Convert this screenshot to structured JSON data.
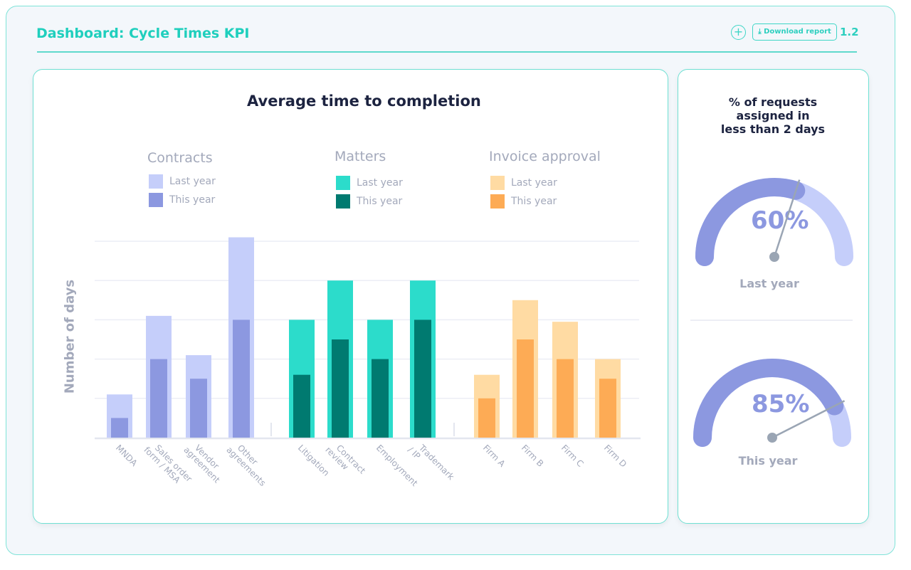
{
  "header": {
    "title": "Dashboard: Cycle Times KPI",
    "add_icon": "plus-circle-icon",
    "download_label": "Download report",
    "download_icon": "download-icon",
    "version": "1.2"
  },
  "colors": {
    "accent": "#2dcfbf",
    "contracts_last": "#c5cefa",
    "contracts_this": "#8c98e0",
    "matters_last": "#2cdccb",
    "matters_this": "#007a70",
    "invoice_last": "#ffdba3",
    "invoice_this": "#fdab55"
  },
  "chart_data": {
    "type": "bar",
    "title": "Average time to completion",
    "ylabel": "Number of days",
    "xlabel": "",
    "grid": true,
    "ylim": [
      0,
      5
    ],
    "groups": [
      {
        "name": "Contracts",
        "legend": [
          "Last year",
          "This year"
        ],
        "categories": [
          [
            "MNDA"
          ],
          [
            "Sales order",
            "form / MSA"
          ],
          [
            "Vendor",
            "agreement"
          ],
          [
            "Other",
            "agreements"
          ]
        ],
        "series": [
          {
            "name": "Last year",
            "values": [
              1.1,
              3.1,
              2.1,
              5.1
            ]
          },
          {
            "name": "This year",
            "values": [
              0.5,
              2.0,
              1.5,
              3.0
            ]
          }
        ]
      },
      {
        "name": "Matters",
        "legend": [
          "Last year",
          "This year"
        ],
        "categories": [
          [
            "Litigation"
          ],
          [
            "Contract",
            "review"
          ],
          [
            "Employment"
          ],
          [
            "Trademark",
            "/ IP"
          ]
        ],
        "series": [
          {
            "name": "Last year",
            "values": [
              3.0,
              4.0,
              3.0,
              4.0
            ]
          },
          {
            "name": "This year",
            "values": [
              1.6,
              2.5,
              2.0,
              3.0
            ]
          }
        ]
      },
      {
        "name": "Invoice approval",
        "legend": [
          "Last year",
          "This year"
        ],
        "categories": [
          [
            "Firm A"
          ],
          [
            "Firm B"
          ],
          [
            "Firm C"
          ],
          [
            "Firm D"
          ]
        ],
        "series": [
          {
            "name": "Last year",
            "values": [
              1.6,
              3.5,
              2.95,
              2.0
            ]
          },
          {
            "name": "This year",
            "values": [
              1.0,
              2.5,
              2.0,
              1.5
            ]
          }
        ]
      }
    ]
  },
  "gauges": {
    "title": "% of requests assigned in less than 2 days",
    "title_lines": [
      "% of requests",
      "assigned in",
      "less than 2 days"
    ],
    "items": [
      {
        "label": "Last year",
        "value_text": "60%",
        "value": 60
      },
      {
        "label": "This year",
        "value_text": "85%",
        "value": 85
      }
    ]
  }
}
